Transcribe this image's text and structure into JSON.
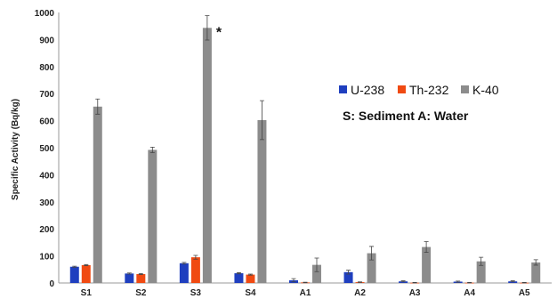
{
  "chart_data": {
    "type": "bar",
    "ylabel": "Specific Activity (Bq/kg)",
    "ylim": [
      0,
      1000
    ],
    "yticks": [
      0,
      100,
      200,
      300,
      400,
      500,
      600,
      700,
      800,
      900,
      1000
    ],
    "grid": false,
    "legend_position": "center-right",
    "categories": [
      "S1",
      "S2",
      "S3",
      "S4",
      "A1",
      "A2",
      "A3",
      "A4",
      "A5"
    ],
    "series": [
      {
        "name": "U-238",
        "color": "#1f3fbf",
        "values": [
          60,
          35,
          73,
          36,
          10,
          40,
          6,
          5,
          6
        ],
        "errors": [
          2,
          2,
          3,
          2,
          6,
          7,
          2,
          2,
          2
        ]
      },
      {
        "name": "Th-232",
        "color": "#f04a12",
        "values": [
          66,
          33,
          95,
          31,
          2,
          3,
          1,
          1,
          1
        ],
        "errors": [
          2,
          2,
          7,
          2,
          1,
          1,
          1,
          1,
          1
        ]
      },
      {
        "name": "K-40",
        "color": "#8c8c8c",
        "values": [
          652,
          492,
          943,
          602,
          67,
          110,
          133,
          80,
          76
        ],
        "errors": [
          28,
          10,
          45,
          72,
          25,
          25,
          20,
          15,
          10
        ]
      }
    ],
    "annotations": [
      {
        "text": "*",
        "category": "S3",
        "series": "K-40"
      },
      {
        "text": "S: Sediment A: Water"
      }
    ]
  }
}
